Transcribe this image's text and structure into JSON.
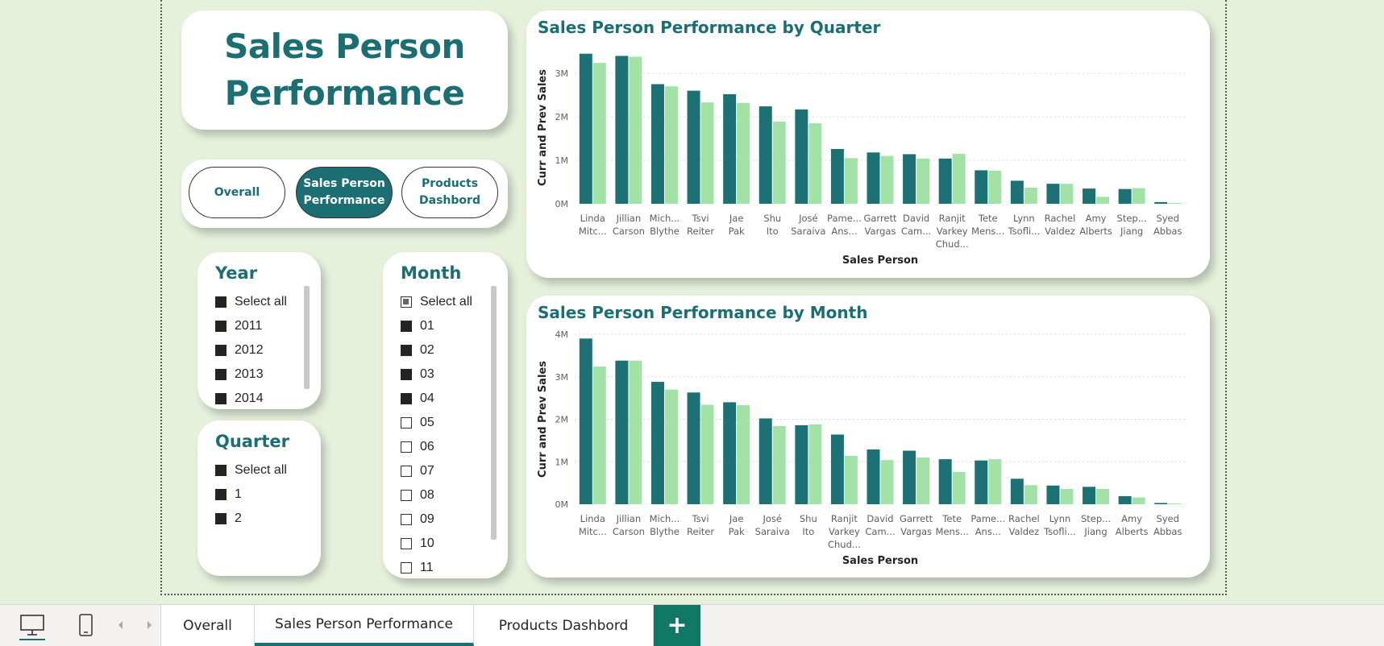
{
  "report": {
    "title": "Sales Person Performance"
  },
  "nav_buttons": [
    {
      "label": "Overall",
      "active": false
    },
    {
      "label": "Sales Person\nPerformance",
      "active": true
    },
    {
      "label": "Products\nDashbord",
      "active": false
    }
  ],
  "slicers": {
    "year": {
      "title": "Year",
      "items": [
        {
          "label": "Select all",
          "state": "on"
        },
        {
          "label": "2011",
          "state": "on"
        },
        {
          "label": "2012",
          "state": "on"
        },
        {
          "label": "2013",
          "state": "on"
        },
        {
          "label": "2014",
          "state": "on"
        }
      ]
    },
    "quarter": {
      "title": "Quarter",
      "items": [
        {
          "label": "Select all",
          "state": "on"
        },
        {
          "label": "1",
          "state": "on"
        },
        {
          "label": "2",
          "state": "on"
        }
      ]
    },
    "month": {
      "title": "Month",
      "items": [
        {
          "label": "Select all",
          "state": "partial"
        },
        {
          "label": "01",
          "state": "on"
        },
        {
          "label": "02",
          "state": "on"
        },
        {
          "label": "03",
          "state": "on"
        },
        {
          "label": "04",
          "state": "on"
        },
        {
          "label": "05",
          "state": "off"
        },
        {
          "label": "06",
          "state": "off"
        },
        {
          "label": "07",
          "state": "off"
        },
        {
          "label": "08",
          "state": "off"
        },
        {
          "label": "09",
          "state": "off"
        },
        {
          "label": "10",
          "state": "off"
        },
        {
          "label": "11",
          "state": "off"
        }
      ]
    }
  },
  "colors": {
    "current": "#1b7174",
    "previous": "#a2e2a6",
    "accent": "#1b6f73"
  },
  "chart_data": [
    {
      "type": "bar",
      "title": "Sales Person Performance by Quarter",
      "xlabel": "Sales Person",
      "ylabel": "Curr and Prev Sales",
      "ylim": [
        0,
        3500000
      ],
      "yticks": [
        0,
        1000000,
        2000000,
        3000000
      ],
      "ytick_labels": [
        "0M",
        "1M",
        "2M",
        "3M"
      ],
      "categories": [
        "Linda Mitc...",
        "Jillian Carson",
        "Mich... Blythe",
        "Tsvi Reiter",
        "Jae Pak",
        "Shu Ito",
        "José Saraiva",
        "Pame... Ans...",
        "Garrett Vargas",
        "David Cam...",
        "Ranjit Varkey Chud...",
        "Tete Mens...",
        "Lynn Tsofli...",
        "Rachel Valdez",
        "Amy Alberts",
        "Step... Jiang",
        "Syed Abbas"
      ],
      "series": [
        {
          "values": [
            3450000,
            3400000,
            2750000,
            2600000,
            2520000,
            2240000,
            2170000,
            1260000,
            1180000,
            1140000,
            1040000,
            770000,
            530000,
            460000,
            350000,
            340000,
            40000
          ]
        },
        {
          "values": [
            3240000,
            3380000,
            2700000,
            2330000,
            2320000,
            1890000,
            1850000,
            1050000,
            1100000,
            1040000,
            1150000,
            760000,
            370000,
            460000,
            160000,
            360000,
            20000
          ]
        }
      ],
      "grid": true
    },
    {
      "type": "bar",
      "title": "Sales Person Performance by Month",
      "xlabel": "Sales Person",
      "ylabel": "Curr and Prev Sales",
      "ylim": [
        0,
        4000000
      ],
      "yticks": [
        0,
        1000000,
        2000000,
        3000000,
        4000000
      ],
      "ytick_labels": [
        "0M",
        "1M",
        "2M",
        "3M",
        "4M"
      ],
      "categories": [
        "Linda Mitc...",
        "Jillian Carson",
        "Mich... Blythe",
        "Tsvi Reiter",
        "Jae Pak",
        "José Saraiva",
        "Shu Ito",
        "Ranjit Varkey Chud...",
        "David Cam...",
        "Garrett Vargas",
        "Tete Mens...",
        "Pame... Ans...",
        "Rachel Valdez",
        "Lynn Tsofli...",
        "Step... Jiang",
        "Amy Alberts",
        "Syed Abbas"
      ],
      "series": [
        {
          "values": [
            3900000,
            3380000,
            2880000,
            2630000,
            2400000,
            2020000,
            1860000,
            1640000,
            1290000,
            1260000,
            1060000,
            1030000,
            600000,
            440000,
            410000,
            190000,
            30000
          ]
        },
        {
          "values": [
            3240000,
            3380000,
            2700000,
            2340000,
            2330000,
            1840000,
            1880000,
            1140000,
            1040000,
            1100000,
            760000,
            1060000,
            450000,
            360000,
            360000,
            160000,
            20000
          ]
        }
      ],
      "grid": true
    }
  ],
  "bottom_tabs": [
    {
      "label": "Overall",
      "active": false
    },
    {
      "label": "Sales Person Performance",
      "active": true
    },
    {
      "label": "Products Dashbord",
      "active": false
    }
  ],
  "add_tab_label": "+",
  "icons": {
    "desktop": "desktop-view-icon",
    "mobile": "mobile-view-icon",
    "prev": "chevron-left-icon",
    "next": "chevron-right-icon"
  }
}
